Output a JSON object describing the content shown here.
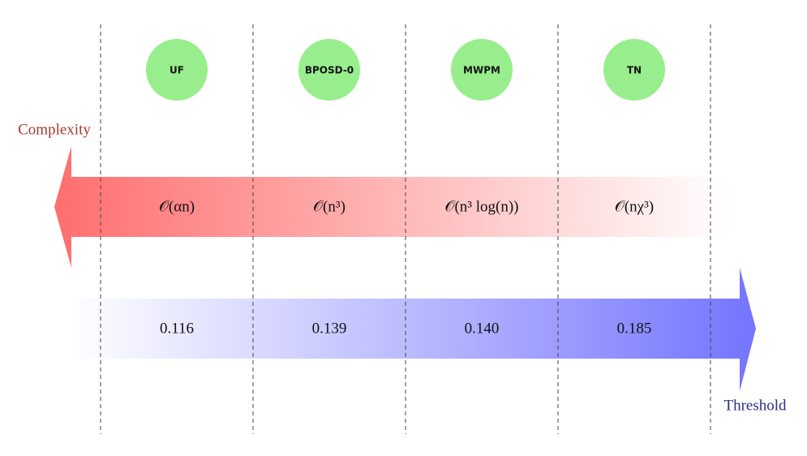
{
  "axis_labels": {
    "complexity": "Complexity",
    "threshold": "Threshold"
  },
  "decoders": [
    {
      "name": "UF",
      "complexity": "𝒪(αn)",
      "threshold": "0.116"
    },
    {
      "name": "BPOSD-0",
      "complexity": "𝒪(n³)",
      "threshold": "0.139"
    },
    {
      "name": "MWPM",
      "complexity": "𝒪(n³ log(n))",
      "threshold": "0.140"
    },
    {
      "name": "TN",
      "complexity": "𝒪(nχ³)",
      "threshold": "0.185"
    }
  ]
}
